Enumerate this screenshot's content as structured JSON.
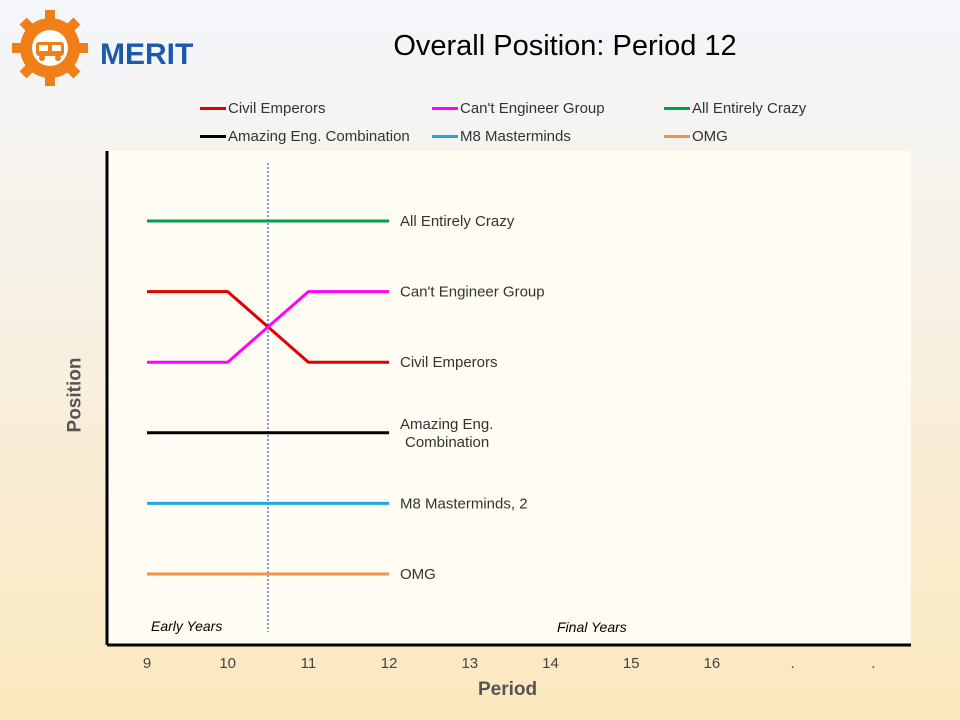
{
  "header": {
    "logo_text": "MERIT",
    "title": "Overall Position: Period 12"
  },
  "colors": {
    "logo_orange": "#f07f1a",
    "logo_blue": "#1f5aa8",
    "plot_background": "#fefcf3"
  },
  "chart_data": {
    "type": "line",
    "title": "Overall Position: Period 12",
    "xlabel": "Period",
    "ylabel": "Position",
    "x_tick_labels": [
      "9",
      "10",
      "11",
      "12",
      "13",
      "14",
      "15",
      "16",
      ".",
      "."
    ],
    "xlim": [
      9,
      18
    ],
    "y_positions": 6,
    "legend_position": "top",
    "divider_x": 10.5,
    "region_labels": {
      "left": "Early Years",
      "right": "Final Years"
    },
    "series": [
      {
        "name": "Civil Emperors",
        "color": "#e00000",
        "x": [
          9,
          10,
          11,
          12
        ],
        "y": [
          2,
          2,
          3,
          3
        ],
        "end_label": "Civil Emperors"
      },
      {
        "name": "Can't Engineer Group",
        "color": "#ff00ff",
        "x": [
          9,
          10,
          11,
          12
        ],
        "y": [
          3,
          3,
          2,
          2
        ],
        "end_label": "Can't Engineer Group"
      },
      {
        "name": "All Entirely Crazy",
        "color": "#00a050",
        "x": [
          9,
          10,
          11,
          12
        ],
        "y": [
          1,
          1,
          1,
          1
        ],
        "end_label": "All Entirely Crazy"
      },
      {
        "name": "Amazing Eng. Combination",
        "color": "#000000",
        "x": [
          9,
          10,
          11,
          12
        ],
        "y": [
          4,
          4,
          4,
          4
        ],
        "end_label": "Amazing Eng.\nCombination"
      },
      {
        "name": "M8 Masterminds",
        "color": "#1ea8e0",
        "x": [
          9,
          10,
          11,
          12
        ],
        "y": [
          5,
          5,
          5,
          5
        ],
        "end_label": "M8 Masterminds, 2"
      },
      {
        "name": "OMG",
        "color": "#f0944a",
        "x": [
          9,
          10,
          11,
          12
        ],
        "y": [
          6,
          6,
          6,
          6
        ],
        "end_label": "OMG"
      }
    ]
  }
}
